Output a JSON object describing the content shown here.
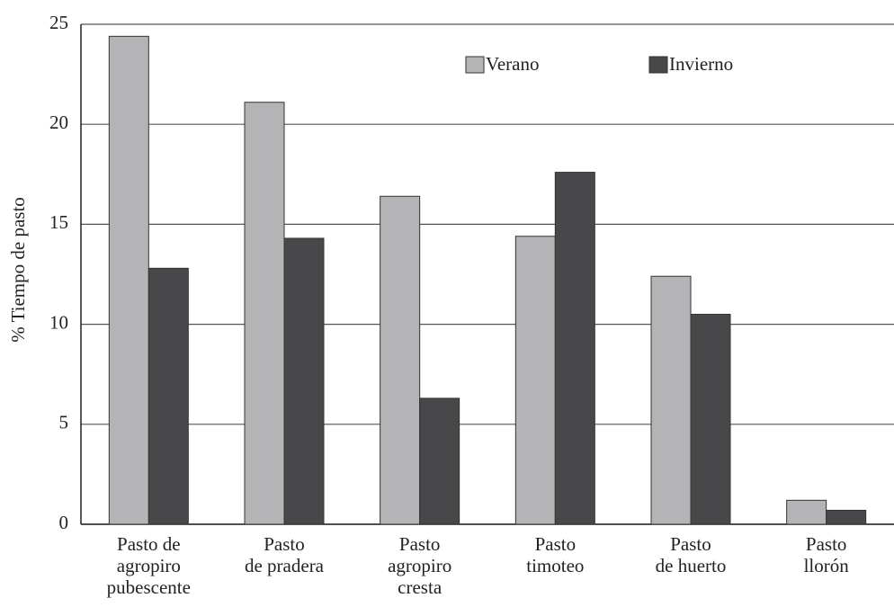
{
  "chart_data": {
    "type": "bar",
    "y_label": "% Tiempo de pasto",
    "categories": [
      "Pasto de\nagropiro\npubescente",
      "Pasto\nde pradera",
      "Pasto\nagropiro\ncresta",
      "Pasto\ntimoteo",
      "Pasto\nde huerto",
      "Pasto\nllorón"
    ],
    "series": [
      {
        "name": "Verano",
        "color": "#b4b4b6",
        "values": [
          24.4,
          21.1,
          16.4,
          14.4,
          12.4,
          1.2
        ]
      },
      {
        "name": "Invierno",
        "color": "#48484a",
        "values": [
          12.8,
          14.3,
          6.3,
          17.6,
          10.5,
          0.7
        ]
      }
    ],
    "ylim": [
      0,
      25
    ],
    "yticks": [
      0,
      5,
      10,
      15,
      20,
      25
    ],
    "grid": true,
    "legend": "top"
  }
}
